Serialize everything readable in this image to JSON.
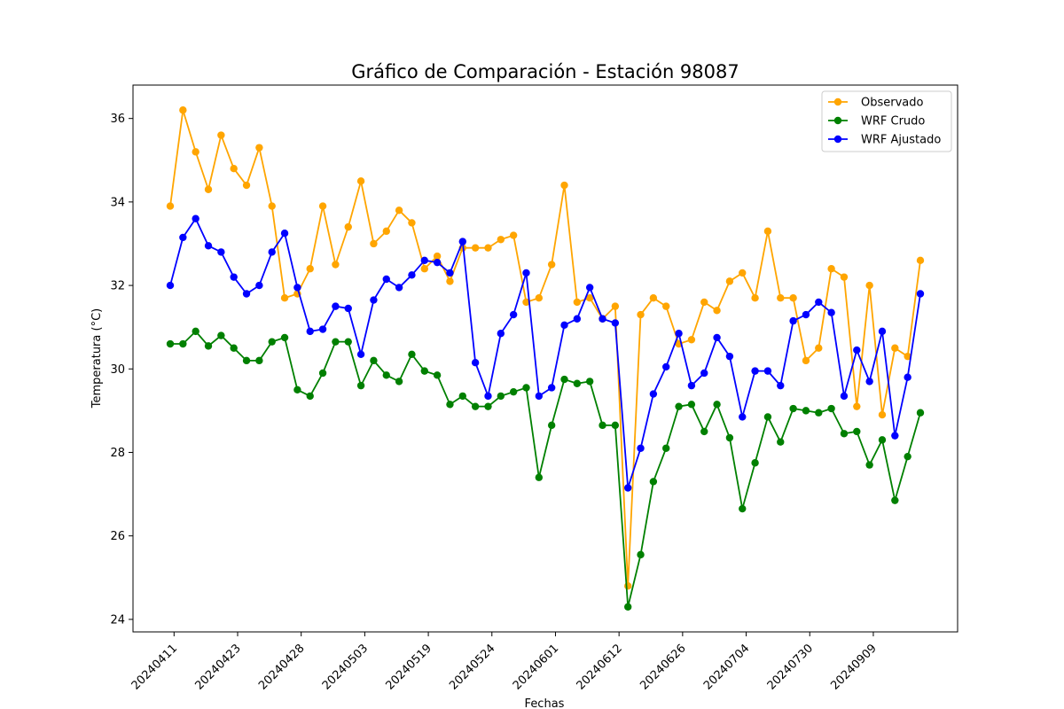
{
  "chart_data": {
    "type": "line",
    "title": "Gráfico de Comparación - Estación 98087",
    "xlabel": "Fechas",
    "ylabel": "Temperatura (°C)",
    "ylim": [
      23.7,
      36.8
    ],
    "yticks": [
      24,
      26,
      28,
      30,
      32,
      34,
      36
    ],
    "grid": false,
    "legend_position": "top-right",
    "x_tick_labels": [
      "20240411",
      "20240423",
      "20240428",
      "20240503",
      "20240519",
      "20240524",
      "20240601",
      "20240612",
      "20240626",
      "20240704",
      "20240730",
      "20240909"
    ],
    "x_tick_every": 5,
    "point_count": 60,
    "series": [
      {
        "name": "Observado",
        "color": "#ffa500",
        "values": [
          33.9,
          36.2,
          35.2,
          34.3,
          35.6,
          34.8,
          34.4,
          35.3,
          33.9,
          31.7,
          31.8,
          32.4,
          33.9,
          32.5,
          33.4,
          34.5,
          33.0,
          33.3,
          33.8,
          33.5,
          32.4,
          32.7,
          32.1,
          32.9,
          32.9,
          32.9,
          33.1,
          33.2,
          31.6,
          31.7,
          32.5,
          34.4,
          31.6,
          31.7,
          31.2,
          31.5,
          24.8,
          31.3,
          31.7,
          31.5,
          30.6,
          30.7,
          31.6,
          31.4,
          32.1,
          32.3,
          31.7,
          33.3,
          31.7,
          31.7,
          30.2,
          30.5,
          32.4,
          32.2,
          29.1,
          32.0,
          28.9,
          30.5,
          30.3,
          32.6
        ]
      },
      {
        "name": "WRF Crudo",
        "color": "#008000",
        "values": [
          30.6,
          30.6,
          30.9,
          30.55,
          30.8,
          30.5,
          30.2,
          30.2,
          30.65,
          30.75,
          29.5,
          29.35,
          29.9,
          30.65,
          30.65,
          29.6,
          30.2,
          29.85,
          29.7,
          30.35,
          29.95,
          29.85,
          29.15,
          29.35,
          29.1,
          29.1,
          29.35,
          29.45,
          29.55,
          27.4,
          28.65,
          29.75,
          29.65,
          29.7,
          28.65,
          28.65,
          24.3,
          25.55,
          27.3,
          28.1,
          29.1,
          29.15,
          28.5,
          29.15,
          28.35,
          26.65,
          27.75,
          28.85,
          28.25,
          29.05,
          29.0,
          28.95,
          29.05,
          28.45,
          28.5,
          27.7,
          28.3,
          26.85,
          27.9,
          28.95
        ]
      },
      {
        "name": "WRF Ajustado",
        "color": "#0000ff",
        "values": [
          32.0,
          33.15,
          33.6,
          32.95,
          32.8,
          32.2,
          31.8,
          32.0,
          32.8,
          33.25,
          31.95,
          30.9,
          30.95,
          31.5,
          31.45,
          30.35,
          31.65,
          32.15,
          31.95,
          32.25,
          32.6,
          32.55,
          32.3,
          33.05,
          30.15,
          29.35,
          30.85,
          31.3,
          32.3,
          29.35,
          29.55,
          31.05,
          31.2,
          31.95,
          31.2,
          31.1,
          27.15,
          28.1,
          29.4,
          30.05,
          30.85,
          29.6,
          29.9,
          30.75,
          30.3,
          28.85,
          29.95,
          29.95,
          29.6,
          31.15,
          31.3,
          31.6,
          31.35,
          29.35,
          30.45,
          29.7,
          30.9,
          28.4,
          29.8,
          31.8
        ]
      }
    ]
  }
}
